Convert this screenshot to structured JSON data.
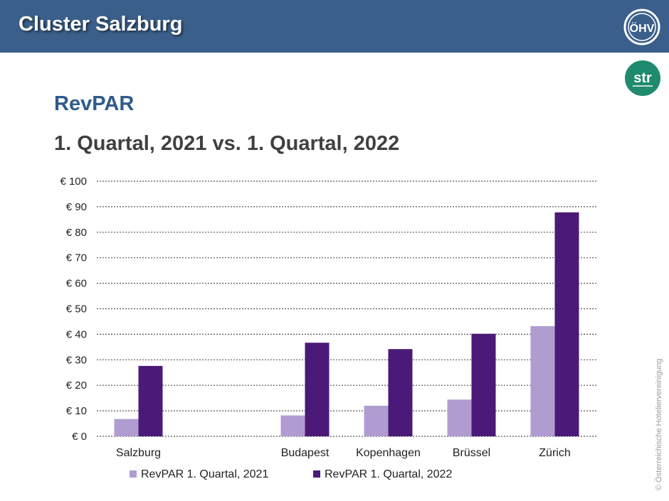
{
  "header": {
    "title": "Cluster Salzburg",
    "logo_left_text": "ÖHV",
    "logo_right_text": "str"
  },
  "section_title": "RevPAR",
  "chart_data": {
    "type": "bar",
    "title": "1. Quartal, 2021 vs. 1. Quartal, 2022",
    "categories": [
      "Salzburg",
      "",
      "Budapest",
      "Kopenhagen",
      "Brüssel",
      "Zürich"
    ],
    "series": [
      {
        "name": "RevPAR 1. Quartal, 2021",
        "color": "#b19cd1",
        "values": [
          6.8,
          null,
          8.2,
          12.0,
          14.4,
          43.2
        ]
      },
      {
        "name": "RevPAR 1. Quartal, 2022",
        "color": "#4b1a78",
        "values": [
          27.6,
          null,
          36.7,
          34.2,
          40.2,
          87.8
        ]
      }
    ],
    "ylim": [
      0,
      100
    ],
    "yticks": [
      0,
      10,
      20,
      30,
      40,
      50,
      60,
      70,
      80,
      90,
      100
    ],
    "ytick_labels": [
      "€ 0",
      "€ 10",
      "€ 20",
      "€ 30",
      "€ 40",
      "€ 50",
      "€ 60",
      "€ 70",
      "€ 80",
      "€ 90",
      "€ 100"
    ],
    "grid": true,
    "legend_position": "bottom"
  },
  "copyright": "© Österreichische Hoteliervereinigung",
  "colors": {
    "header_bg": "#3a5f8a",
    "section_title": "#2f5b8c",
    "str_green": "#1f8a6e"
  }
}
